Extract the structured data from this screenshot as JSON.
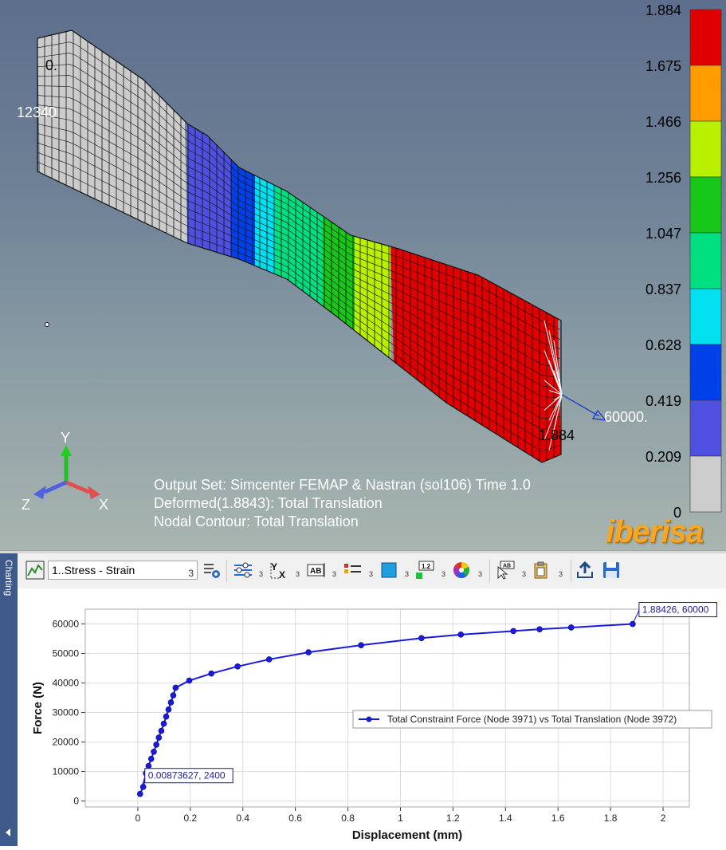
{
  "viewport": {
    "node_labels": {
      "top_left": "0.",
      "left_id": "12340",
      "right_value": "1.884",
      "load_value": "60000."
    },
    "axes": {
      "x": "X",
      "y": "Y",
      "z": "Z"
    },
    "info_lines": [
      "Output Set: Simcenter FEMAP & Nastran (sol106) Time 1.0",
      "Deformed(1.8843): Total Translation",
      "Nodal Contour: Total Translation"
    ],
    "legend": {
      "labels": [
        "1.884",
        "1.675",
        "1.466",
        "1.256",
        "1.047",
        "0.837",
        "0.628",
        "0.419",
        "0.209",
        "0"
      ],
      "colors": [
        "#e00000",
        "#ff9d00",
        "#b8f000",
        "#18c818",
        "#00e080",
        "#00e0f0",
        "#0040e8",
        "#5050e0",
        "#cccccc"
      ]
    },
    "logo": "iberisa"
  },
  "panel": {
    "side_tab": "Charting"
  },
  "toolbar": {
    "chart_select": "1..Stress - Strain",
    "chart_count": "3",
    "buttons": [
      {
        "name": "chart-settings",
        "icon": "gear-list-icon"
      },
      {
        "name": "series-settings",
        "icon": "sliders-icon",
        "count": "3"
      },
      {
        "name": "axes-settings",
        "icon": "yx-axes-icon",
        "count": "3"
      },
      {
        "name": "titles-settings",
        "icon": "ab-text-icon",
        "count": "3"
      },
      {
        "name": "legend-settings",
        "icon": "legend-icon",
        "count": "3"
      },
      {
        "name": "background-settings",
        "icon": "square-fill-icon",
        "count": "3"
      },
      {
        "name": "data-labels",
        "icon": "value-label-icon",
        "count": "3"
      },
      {
        "name": "colors",
        "icon": "color-wheel-icon",
        "count": "3"
      },
      {
        "name": "select-label",
        "icon": "pointer-label-icon",
        "count": "3"
      },
      {
        "name": "copy",
        "icon": "clipboard-icon",
        "count": "3"
      },
      {
        "name": "export",
        "icon": "export-icon"
      },
      {
        "name": "save",
        "icon": "save-icon"
      }
    ]
  },
  "chart_data": {
    "type": "line",
    "title": "",
    "xlabel": "Displacement (mm)",
    "ylabel": "Force (N)",
    "xlim": [
      -0.2,
      2.1
    ],
    "ylim": [
      -2000,
      65000
    ],
    "xticks": [
      0,
      0.2,
      0.4,
      0.6,
      0.8,
      1,
      1.2,
      1.4,
      1.6,
      1.8,
      2
    ],
    "yticks": [
      0,
      10000,
      20000,
      30000,
      40000,
      50000,
      60000
    ],
    "grid": true,
    "legend_position": "right",
    "series": [
      {
        "name": "Total Constraint Force (Node 3971) vs Total Translation (Node 3972)",
        "color": "#1a1adc",
        "x": [
          0.0087,
          0.0205,
          0.031,
          0.041,
          0.051,
          0.061,
          0.0705,
          0.08,
          0.0895,
          0.099,
          0.108,
          0.117,
          0.126,
          0.135,
          0.144,
          0.196,
          0.28,
          0.38,
          0.5,
          0.65,
          0.85,
          1.08,
          1.23,
          1.43,
          1.53,
          1.65,
          1.8843
        ],
        "y": [
          2400,
          4800,
          9400,
          11900,
          14300,
          16700,
          19100,
          21500,
          23800,
          26200,
          28600,
          31000,
          33400,
          35800,
          38400,
          40800,
          43200,
          45600,
          48000,
          50400,
          52800,
          55200,
          56400,
          57600,
          58200,
          58800,
          60000
        ]
      }
    ],
    "annotations": [
      {
        "text": "0.00873627, 2400",
        "x": 0.00873627,
        "y": 2400
      },
      {
        "text": "1.88426, 60000",
        "x": 1.88426,
        "y": 60000
      }
    ]
  }
}
